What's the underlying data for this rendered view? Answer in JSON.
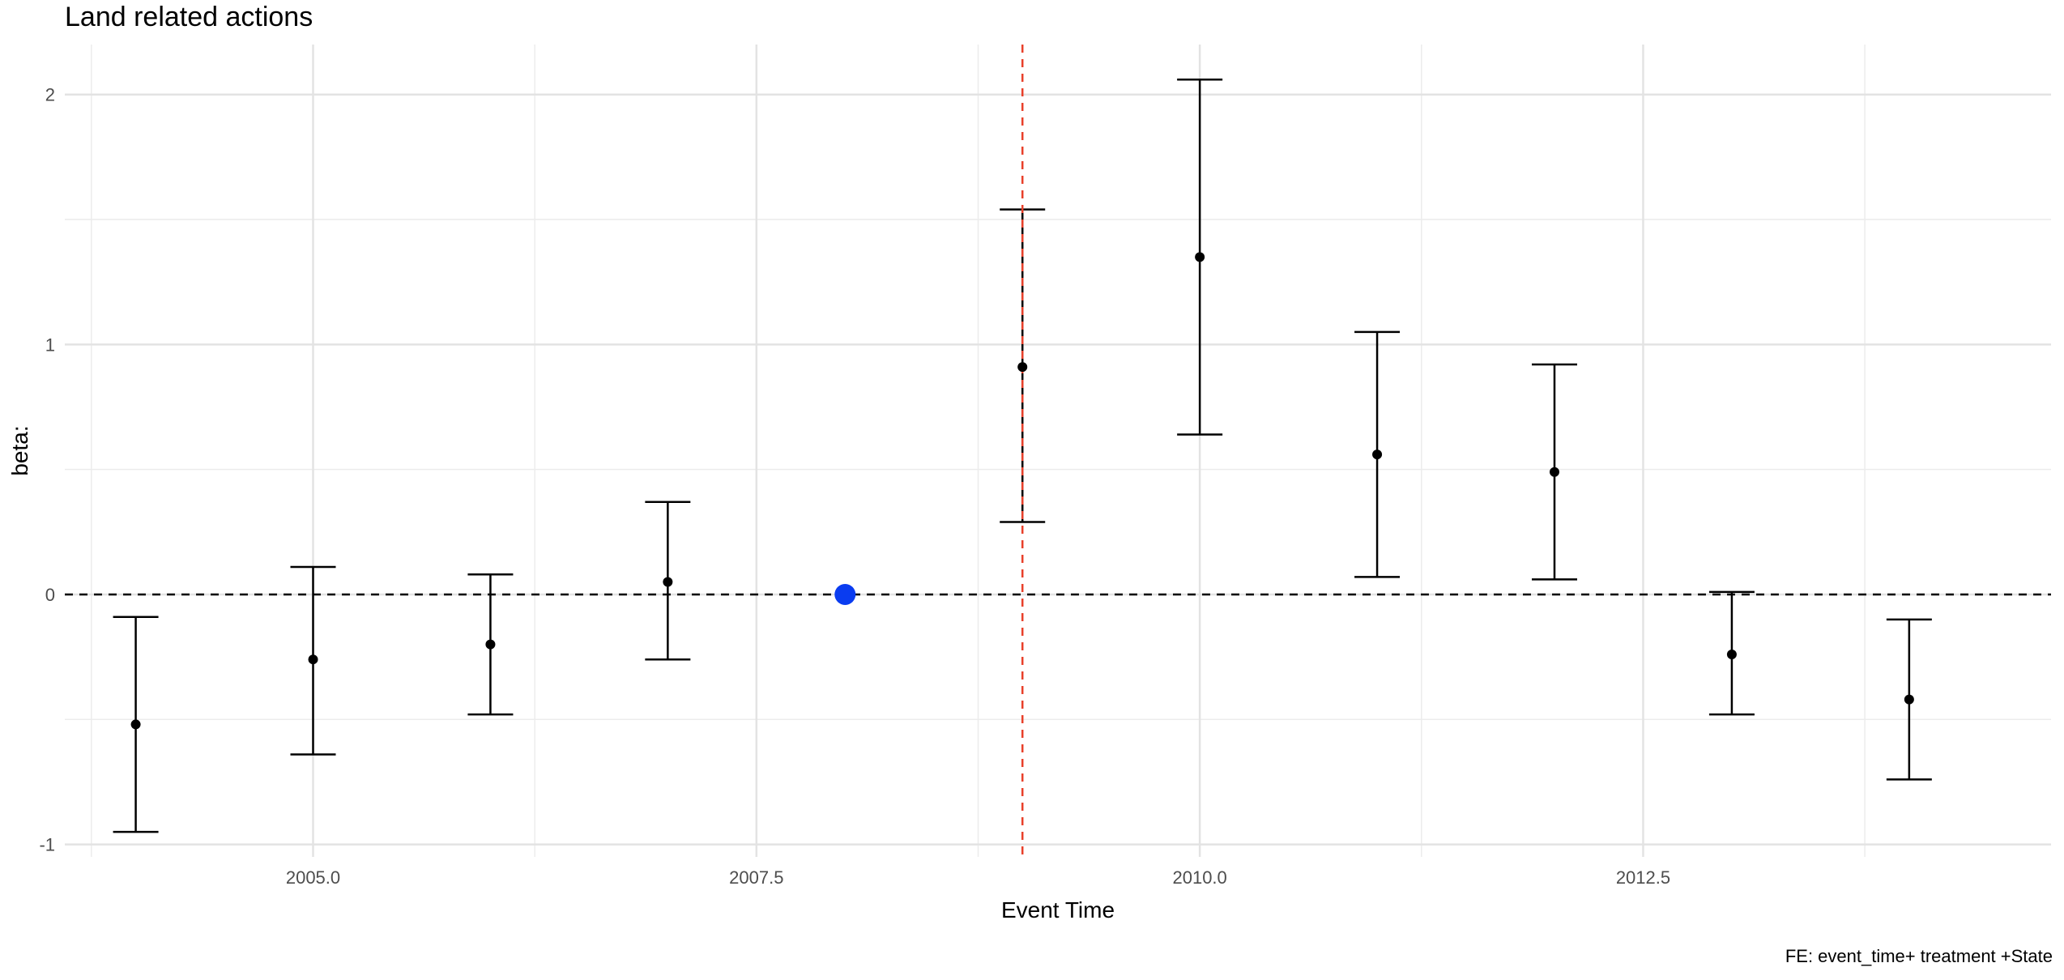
{
  "chart_data": {
    "type": "scatter",
    "title": "Land related actions",
    "xlabel": "Event Time",
    "ylabel": "beta:",
    "caption": "FE: event_time+ treatment +State",
    "xlim": [
      2003.6,
      2014.8
    ],
    "ylim": [
      -1.05,
      2.2
    ],
    "x_major_ticks": [
      2005.0,
      2007.5,
      2010.0,
      2012.5
    ],
    "x_tick_labels": [
      "2005.0",
      "2007.5",
      "2010.0",
      "2012.5"
    ],
    "y_major_ticks": [
      -1,
      0,
      1,
      2
    ],
    "y_tick_labels": [
      "-1",
      "0",
      "1",
      "2"
    ],
    "grid": true,
    "reference_hline": {
      "y": 0,
      "style": "dashed",
      "color": "#000000"
    },
    "reference_vline": {
      "x": 2009,
      "style": "dashed",
      "color": "#e8402a"
    },
    "series": [
      {
        "x": [
          2004,
          2005,
          2006,
          2007,
          2009,
          2010,
          2011,
          2012,
          2013,
          2014
        ],
        "y": [
          -0.52,
          -0.26,
          -0.2,
          0.05,
          0.91,
          1.35,
          0.56,
          0.49,
          -0.24,
          -0.42
        ],
        "lower": [
          -0.95,
          -0.64,
          -0.48,
          -0.26,
          0.29,
          0.64,
          0.07,
          0.06,
          -0.48,
          -0.74
        ],
        "upper": [
          -0.09,
          0.11,
          0.08,
          0.37,
          1.54,
          2.06,
          1.05,
          0.92,
          0.01,
          -0.1
        ],
        "color": "#000000"
      }
    ],
    "reference_point": {
      "x": 2008,
      "y": 0,
      "color": "#0a3cf0"
    }
  }
}
